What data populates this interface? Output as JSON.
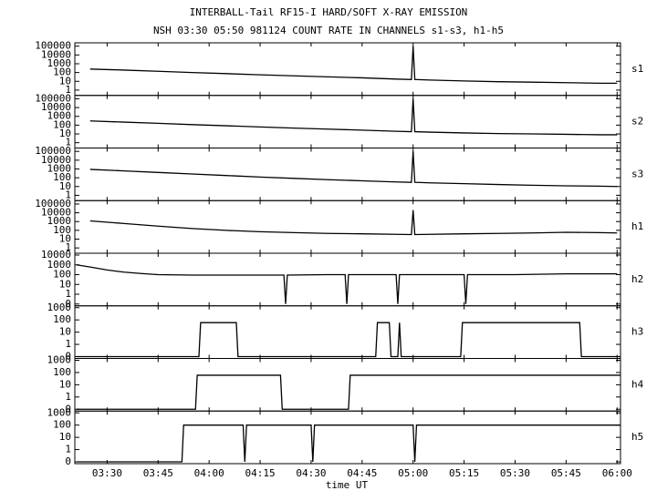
{
  "title": "INTERBALL-Tail RF15-I HARD/SOFT X-RAY EMISSION",
  "subtitle": "NSH 03:30 05:50 981124  COUNT RATE IN CHANNELS s1-s3, h1-h5",
  "xlabel": "time UT",
  "xlim": [
    200.5,
    361
  ],
  "xticks": [
    {
      "value": 210,
      "label": "03:30"
    },
    {
      "value": 225,
      "label": "03:45"
    },
    {
      "value": 240,
      "label": "04:00"
    },
    {
      "value": 255,
      "label": "04:15"
    },
    {
      "value": 270,
      "label": "04:30"
    },
    {
      "value": 285,
      "label": "04:45"
    },
    {
      "value": 300,
      "label": "05:00"
    },
    {
      "value": 315,
      "label": "05:15"
    },
    {
      "value": 330,
      "label": "05:30"
    },
    {
      "value": 345,
      "label": "05:45"
    },
    {
      "value": 360,
      "label": "06:00"
    }
  ],
  "chart_data": [
    {
      "type": "line",
      "label": "s1",
      "color": "#000000",
      "yscale": "log",
      "ylim": [
        0.4,
        150000
      ],
      "yticks": [
        1,
        10,
        100,
        1000,
        10000,
        100000
      ],
      "x": [
        205,
        215,
        225,
        235,
        245,
        255,
        265,
        275,
        285,
        295,
        299.5,
        300,
        300.5,
        305,
        315,
        325,
        335,
        345,
        355,
        360
      ],
      "values": [
        250,
        190,
        140,
        100,
        75,
        55,
        42,
        32,
        25,
        18,
        16,
        100000,
        16,
        14,
        11,
        9,
        8,
        7,
        6,
        6
      ]
    },
    {
      "type": "line",
      "label": "s2",
      "color": "#000000",
      "yscale": "log",
      "ylim": [
        0.4,
        150000
      ],
      "yticks": [
        1,
        10,
        100,
        1000,
        10000,
        100000
      ],
      "x": [
        205,
        215,
        225,
        235,
        245,
        255,
        265,
        275,
        285,
        295,
        299.5,
        300,
        300.5,
        305,
        315,
        325,
        335,
        345,
        355,
        360
      ],
      "values": [
        300,
        220,
        160,
        115,
        85,
        62,
        46,
        35,
        27,
        20,
        18,
        100000,
        18,
        16,
        13,
        11,
        10,
        9,
        8,
        8
      ]
    },
    {
      "type": "line",
      "label": "s3",
      "color": "#000000",
      "yscale": "log",
      "ylim": [
        0.4,
        150000
      ],
      "yticks": [
        1,
        10,
        100,
        1000,
        10000,
        100000
      ],
      "x": [
        205,
        215,
        225,
        235,
        245,
        255,
        265,
        275,
        285,
        295,
        299.5,
        300,
        300.5,
        305,
        315,
        325,
        335,
        345,
        355,
        360
      ],
      "values": [
        900,
        600,
        400,
        270,
        180,
        120,
        85,
        60,
        45,
        33,
        30,
        100000,
        30,
        26,
        21,
        17,
        14,
        12,
        11,
        10
      ]
    },
    {
      "type": "line",
      "label": "h1",
      "color": "#000000",
      "yscale": "log",
      "ylim": [
        0.4,
        150000
      ],
      "yticks": [
        1,
        10,
        100,
        1000,
        10000,
        100000
      ],
      "x": [
        205,
        215,
        225,
        235,
        245,
        255,
        265,
        275,
        285,
        295,
        299.5,
        300,
        300.5,
        305,
        315,
        325,
        335,
        345,
        355,
        360
      ],
      "values": [
        1200,
        600,
        300,
        160,
        100,
        70,
        55,
        45,
        40,
        35,
        33,
        20000,
        33,
        35,
        40,
        45,
        50,
        60,
        55,
        50
      ]
    },
    {
      "type": "line",
      "label": "h2",
      "color": "#000000",
      "yscale": "log",
      "ylim": [
        0,
        10000
      ],
      "yticks": [
        0,
        1,
        10,
        100,
        1000,
        10000
      ],
      "x": [
        201,
        205,
        210,
        215,
        220,
        225,
        235,
        245,
        255,
        262,
        262.5,
        263,
        275,
        280,
        280.5,
        281,
        290,
        295,
        295.5,
        296,
        305,
        315,
        315.5,
        316,
        330,
        345,
        360
      ],
      "values": [
        1000,
        600,
        300,
        180,
        130,
        100,
        90,
        90,
        90,
        90,
        0,
        90,
        100,
        100,
        0,
        100,
        100,
        100,
        0,
        100,
        100,
        100,
        0,
        100,
        100,
        120,
        120
      ]
    },
    {
      "type": "line",
      "label": "h3",
      "color": "#000000",
      "yscale": "log",
      "ylim": [
        0,
        1000
      ],
      "yticks": [
        0,
        1,
        10,
        100,
        1000
      ],
      "x": [
        201,
        237,
        237.5,
        248,
        248.5,
        289,
        289.5,
        293,
        293.5,
        295.5,
        296,
        296.5,
        314,
        314.5,
        349,
        349.5,
        361
      ],
      "values": [
        0,
        0,
        60,
        60,
        0,
        0,
        60,
        60,
        0,
        0,
        60,
        0,
        0,
        60,
        60,
        0,
        0
      ]
    },
    {
      "type": "line",
      "label": "h4",
      "color": "#000000",
      "yscale": "log",
      "ylim": [
        0,
        1000
      ],
      "yticks": [
        0,
        1,
        10,
        100,
        1000
      ],
      "x": [
        201,
        236,
        236.5,
        261,
        261.5,
        281,
        281.5,
        361
      ],
      "values": [
        0,
        0,
        60,
        60,
        0,
        0,
        60,
        60
      ]
    },
    {
      "type": "line",
      "label": "h5",
      "color": "#000000",
      "yscale": "log",
      "ylim": [
        0,
        1000
      ],
      "yticks": [
        0,
        1,
        10,
        100,
        1000
      ],
      "x": [
        201,
        232,
        232.5,
        250,
        250.5,
        251,
        270,
        270.5,
        271,
        300,
        300.5,
        301,
        361
      ],
      "values": [
        0,
        0,
        100,
        100,
        0,
        100,
        100,
        0,
        100,
        100,
        0,
        100,
        100
      ]
    }
  ]
}
